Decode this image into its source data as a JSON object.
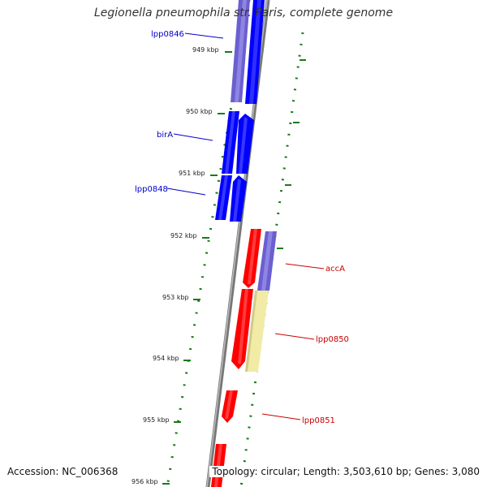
{
  "title": "Legionella pneumophila str. Paris, complete genome",
  "footer": {
    "accession": "Accession: NC_006368",
    "summary": "Topology: circular; Length: 3,503,610 bp; Genes: 3,080"
  },
  "ticks": [
    "949 kbp",
    "950 kbp",
    "951 kbp",
    "952 kbp",
    "953 kbp",
    "954 kbp",
    "955 kbp",
    "956 kbp"
  ],
  "genes": [
    {
      "label": "lpp0846",
      "color": "#0000cc"
    },
    {
      "label": "birA",
      "color": "#0000cc"
    },
    {
      "label": "lpp0848",
      "color": "#0000cc"
    },
    {
      "label": "accA",
      "color": "#cc0000"
    },
    {
      "label": "lpp0850",
      "color": "#cc0000"
    },
    {
      "label": "lpp0851",
      "color": "#cc0000"
    }
  ],
  "colors": {
    "forward": "#0000ff",
    "reverse": "#ff0000",
    "purple": "#7a6cd6",
    "yellow": "#f2eba6",
    "tick": "#1a7a1a",
    "backbone": "#888888"
  }
}
